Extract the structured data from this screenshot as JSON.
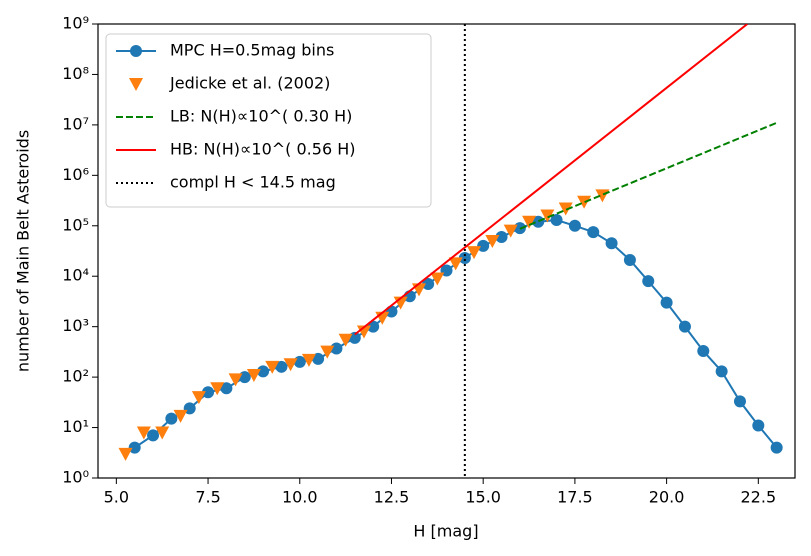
{
  "chart_data": {
    "type": "line",
    "xlabel": "H [mag]",
    "ylabel": "number of Main Belt Asteroids",
    "xlim": [
      4.5,
      23.5
    ],
    "ylim": [
      1,
      1000000000
    ],
    "log_y": true,
    "xticks": [
      {
        "value": 5,
        "label": "5.0"
      },
      7.5,
      {
        "value": 10,
        "label": "10.0"
      },
      12.5,
      {
        "value": 15,
        "label": "15.0"
      },
      17.5,
      {
        "value": 20,
        "label": "20.0"
      },
      22.5
    ],
    "yticks": [
      {
        "value": 1,
        "label": "10⁰"
      },
      {
        "value": 10,
        "label": "10¹"
      },
      {
        "value": 100,
        "label": "10²"
      },
      {
        "value": 1000,
        "label": "10³"
      },
      {
        "value": 10000,
        "label": "10⁴"
      },
      {
        "value": 100000,
        "label": "10⁵"
      },
      {
        "value": 1000000,
        "label": "10⁶"
      },
      {
        "value": 10000000,
        "label": "10⁷"
      },
      {
        "value": 100000000,
        "label": "10⁸"
      },
      {
        "value": 1000000000,
        "label": "10⁹"
      }
    ],
    "legend": "upper left",
    "series": [
      {
        "name": "MPC H=0.5mag bins",
        "color": "#1f77b4",
        "line": "solid",
        "marker": "o",
        "x": [
          5.5,
          6.0,
          6.5,
          7.0,
          7.5,
          8.0,
          8.5,
          9.0,
          9.5,
          10.0,
          10.5,
          11.0,
          11.5,
          12.0,
          12.5,
          13.0,
          13.5,
          14.0,
          14.5,
          15.0,
          15.5,
          16.0,
          16.5,
          17.0,
          17.5,
          18.0,
          18.5,
          19.0,
          19.5,
          20.0,
          20.5,
          21.0,
          21.5,
          22.0,
          22.5,
          23.0
        ],
        "values": [
          4,
          7,
          15,
          24,
          50,
          60,
          100,
          130,
          160,
          200,
          230,
          370,
          600,
          1000,
          2000,
          4000,
          7000,
          13000,
          23000,
          40000,
          60000,
          90000,
          120000,
          130000,
          100000,
          75000,
          45000,
          21000,
          8000,
          3000,
          1000,
          330,
          130,
          33,
          11,
          4
        ]
      },
      {
        "name": "Jedicke et al. (2002)",
        "color": "#ff7f0e",
        "line": "none",
        "marker": "v",
        "x": [
          5.25,
          5.75,
          6.25,
          6.75,
          7.25,
          7.75,
          8.25,
          8.75,
          9.25,
          9.75,
          10.25,
          10.75,
          11.25,
          11.75,
          12.25,
          12.75,
          13.25,
          13.75,
          14.25,
          14.75,
          15.25,
          15.75,
          16.25,
          16.75,
          17.25,
          17.75,
          18.25
        ],
        "values": [
          3,
          8,
          8,
          17,
          40,
          60,
          90,
          110,
          160,
          180,
          220,
          320,
          550,
          800,
          1500,
          3000,
          5500,
          9000,
          18000,
          30000,
          50000,
          80000,
          120000,
          160000,
          220000,
          300000,
          400000
        ]
      },
      {
        "name": "LB: N(H)∝10^( 0.30 H)",
        "color": "#008000",
        "line": "dashed",
        "marker": "none",
        "x": [
          16,
          23
        ],
        "values": [
          87000,
          11000000
        ]
      },
      {
        "name": "HB: N(H)∝10^( 0.56 H)",
        "color": "#ff0000",
        "line": "solid",
        "marker": "none",
        "x": [
          11.5,
          22.2
        ],
        "values": [
          700,
          1000000000
        ]
      }
    ],
    "vlines": [
      {
        "name": "compl H < 14.5 mag",
        "x": 14.5,
        "color": "#000000"
      }
    ]
  }
}
